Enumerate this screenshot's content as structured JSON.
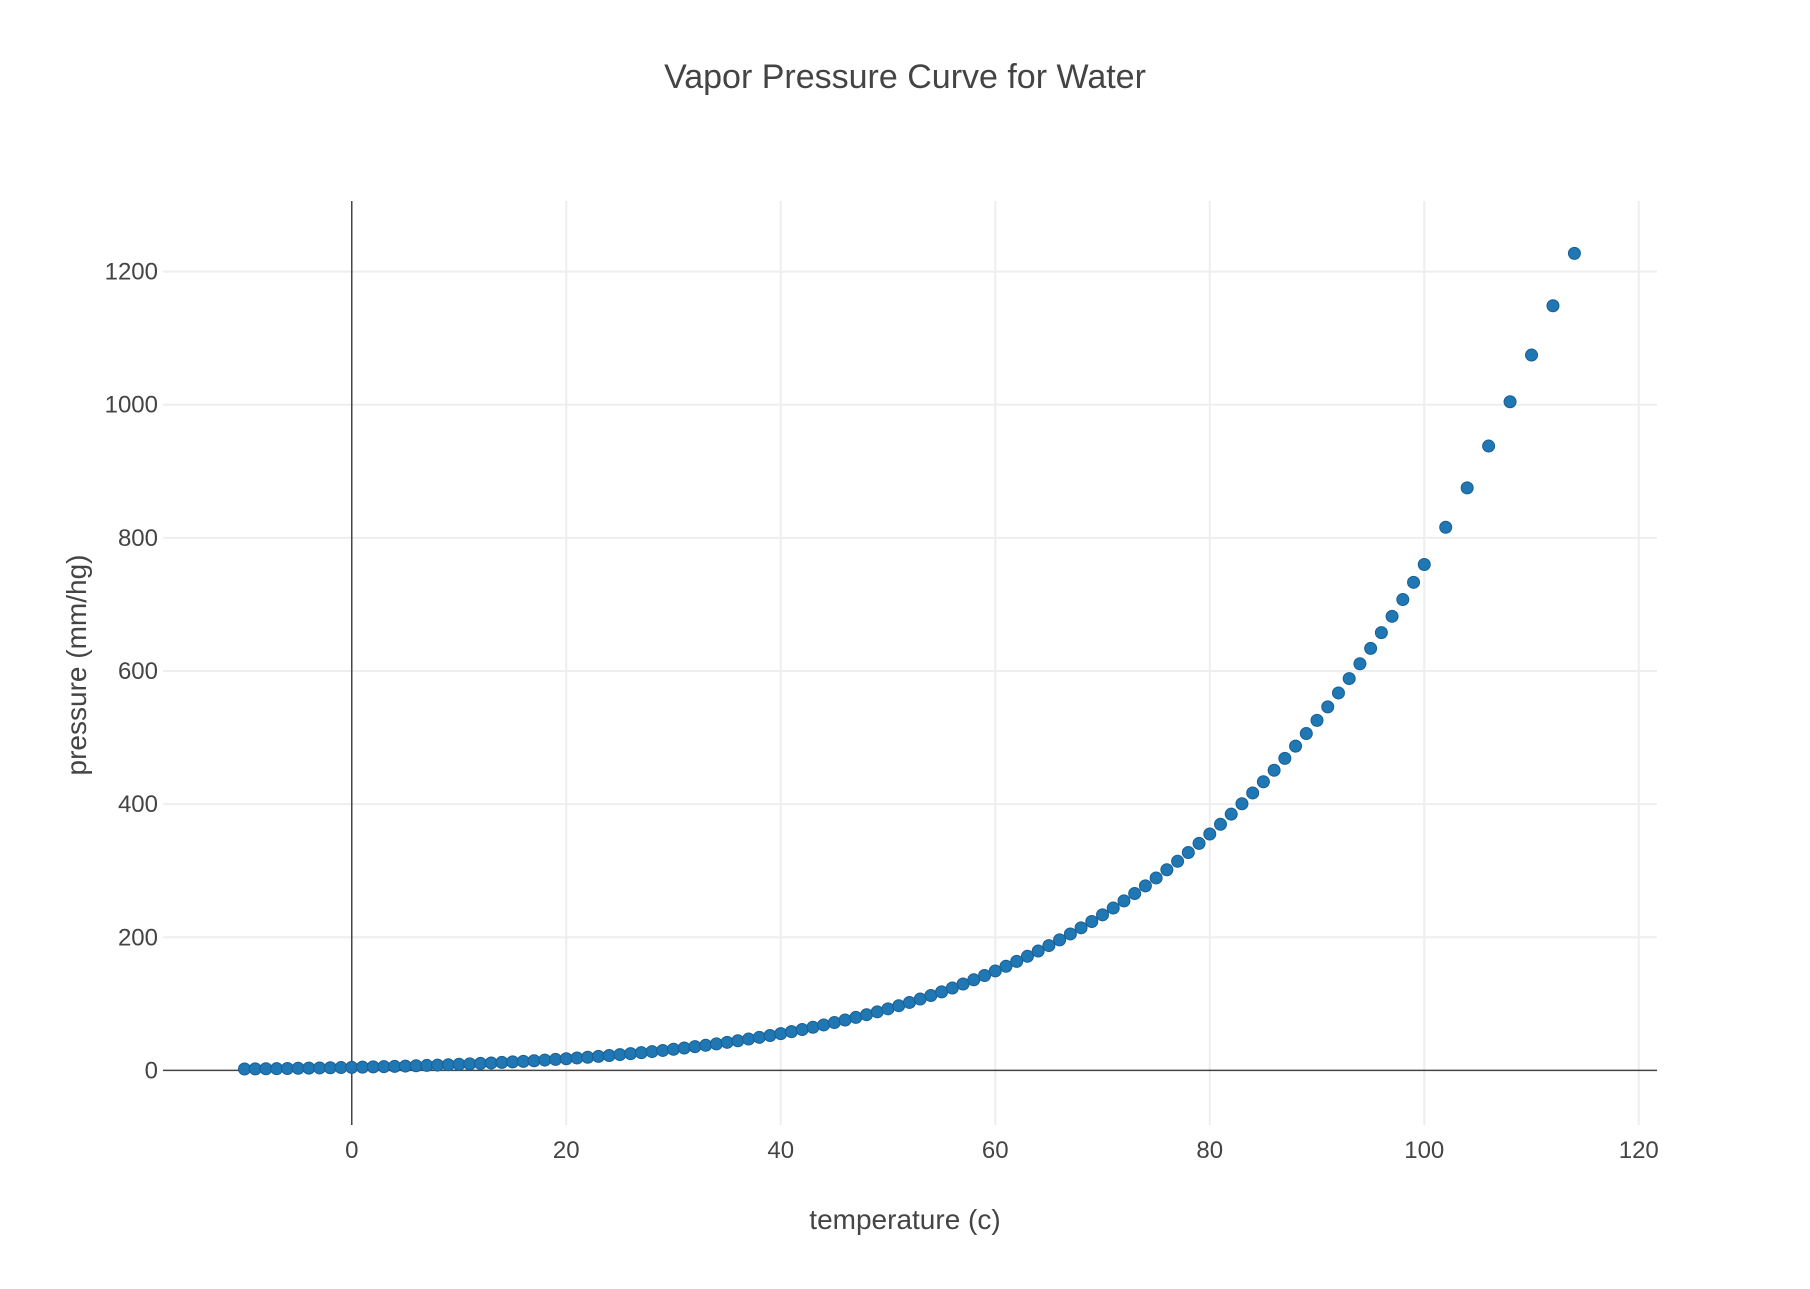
{
  "chart_data": {
    "type": "scatter",
    "title": "Vapor Pressure Curve for Water",
    "xlabel": "temperature (c)",
    "ylabel": "pressure (mm/hg)",
    "xlim": [
      -17.6,
      121.7
    ],
    "ylim": [
      -82,
      1306
    ],
    "xticks": [
      0,
      20,
      40,
      60,
      80,
      100,
      120
    ],
    "yticks": [
      0,
      200,
      400,
      600,
      800,
      1000,
      1200
    ],
    "grid": true,
    "legend": "none",
    "marker_color": "#1f77b4",
    "marker_edge_color": "#1a5f94",
    "x": [
      -10,
      -9,
      -8,
      -7,
      -6,
      -5,
      -4,
      -3,
      -2,
      -1,
      0,
      1,
      2,
      3,
      4,
      5,
      6,
      7,
      8,
      9,
      10,
      11,
      12,
      13,
      14,
      15,
      16,
      17,
      18,
      19,
      20,
      21,
      22,
      23,
      24,
      25,
      26,
      27,
      28,
      29,
      30,
      31,
      32,
      33,
      34,
      35,
      36,
      37,
      38,
      39,
      40,
      41,
      42,
      43,
      44,
      45,
      46,
      47,
      48,
      49,
      50,
      51,
      52,
      53,
      54,
      55,
      56,
      57,
      58,
      59,
      60,
      61,
      62,
      63,
      64,
      65,
      66,
      67,
      68,
      69,
      70,
      71,
      72,
      73,
      74,
      75,
      76,
      77,
      78,
      79,
      80,
      81,
      82,
      83,
      84,
      85,
      86,
      87,
      88,
      89,
      90,
      91,
      92,
      93,
      94,
      95,
      96,
      97,
      98,
      99,
      100,
      102,
      104,
      106,
      108,
      110,
      112,
      114
    ],
    "y": [
      2.1,
      2.3,
      2.5,
      2.7,
      2.9,
      3.2,
      3.4,
      3.7,
      4.0,
      4.3,
      4.6,
      4.9,
      5.3,
      5.7,
      6.1,
      6.5,
      7.0,
      7.5,
      8.0,
      8.6,
      9.2,
      9.8,
      10.5,
      11.2,
      12.0,
      12.8,
      13.6,
      14.5,
      15.5,
      16.5,
      17.5,
      18.7,
      19.8,
      21.1,
      22.4,
      23.8,
      25.2,
      26.7,
      28.3,
      30.0,
      31.8,
      33.7,
      35.7,
      37.7,
      39.9,
      42.2,
      44.6,
      47.1,
      49.7,
      52.4,
      55.3,
      58.3,
      61.5,
      64.8,
      68.3,
      71.9,
      75.7,
      79.6,
      83.7,
      88.0,
      92.5,
      97.2,
      102.1,
      107.2,
      112.5,
      118.0,
      123.8,
      129.8,
      136.1,
      142.6,
      149.4,
      156.4,
      163.8,
      171.4,
      179.3,
      187.5,
      196.1,
      205.0,
      214.2,
      223.7,
      233.7,
      243.9,
      254.6,
      265.7,
      277.2,
      289.1,
      301.4,
      314.1,
      327.3,
      341.0,
      355.1,
      369.7,
      384.9,
      400.6,
      416.8,
      433.6,
      450.9,
      468.7,
      487.1,
      506.1,
      525.8,
      546.1,
      567.0,
      588.6,
      610.9,
      633.9,
      657.6,
      682.1,
      707.3,
      733.2,
      760.0,
      815.9,
      875.1,
      937.9,
      1004.4,
      1074.6,
      1148.7,
      1227.3
    ]
  }
}
